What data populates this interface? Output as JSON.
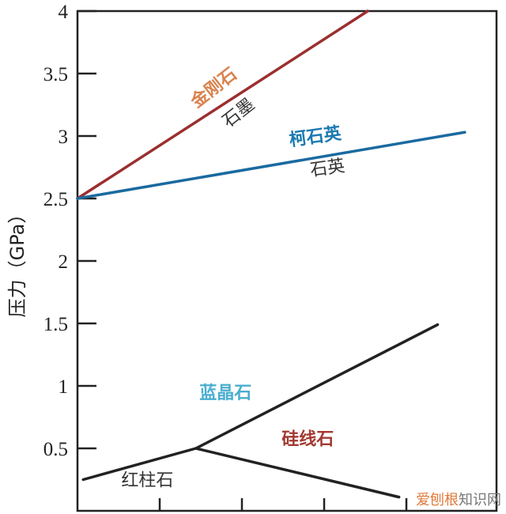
{
  "chart_data": {
    "type": "line",
    "title": "",
    "xlabel": "",
    "ylabel": "压力（GPa）",
    "ylim": [
      0,
      4
    ],
    "xlim": [
      0,
      5.1
    ],
    "yticks": [
      "0.5",
      "1",
      "1.5",
      "2",
      "2.5",
      "3",
      "3.5",
      "4"
    ],
    "xticks": [
      1,
      2,
      3,
      4
    ],
    "grid": false,
    "series": [
      {
        "x": [
          0,
          3.53
        ],
        "y": [
          2.5,
          4.0
        ],
        "color": "#9b2f2f"
      },
      {
        "x": [
          0,
          4.71
        ],
        "y": [
          2.5,
          3.03
        ],
        "color": "#1a6aa0"
      },
      {
        "x": [
          0.07,
          1.44
        ],
        "y": [
          0.25,
          0.5
        ],
        "color": "#222222"
      },
      {
        "x": [
          1.44,
          4.38
        ],
        "y": [
          0.5,
          1.49
        ],
        "color": "#222222"
      },
      {
        "x": [
          1.44,
          3.91
        ],
        "y": [
          0.5,
          0.11
        ],
        "color": "#222222"
      }
    ],
    "annotations": [
      {
        "text": "金刚石",
        "x": 1.7,
        "y": 3.35,
        "color": "#d9824e",
        "rotate": -38
      },
      {
        "text": "石墨",
        "x": 2.0,
        "y": 3.15,
        "color": "#333333",
        "rotate": -38
      },
      {
        "text": "柯石英",
        "x": 2.9,
        "y": 2.95,
        "color": "#1a7ab0",
        "rotate": -8
      },
      {
        "text": "石英",
        "x": 3.05,
        "y": 2.7,
        "color": "#333333",
        "rotate": -8
      },
      {
        "text": "蓝晶石",
        "x": 1.8,
        "y": 0.9,
        "color": "#4aaed0",
        "rotate": 0
      },
      {
        "text": "硅线石",
        "x": 2.8,
        "y": 0.53,
        "color": "#a23a32",
        "rotate": 0
      },
      {
        "text": "红柱石",
        "x": 0.85,
        "y": 0.2,
        "color": "#333333",
        "rotate": 0
      }
    ]
  },
  "watermark": {
    "part1": "爱刨根",
    "part2": "知识网",
    "color1": "#e07a3a",
    "color2": "#777777"
  }
}
